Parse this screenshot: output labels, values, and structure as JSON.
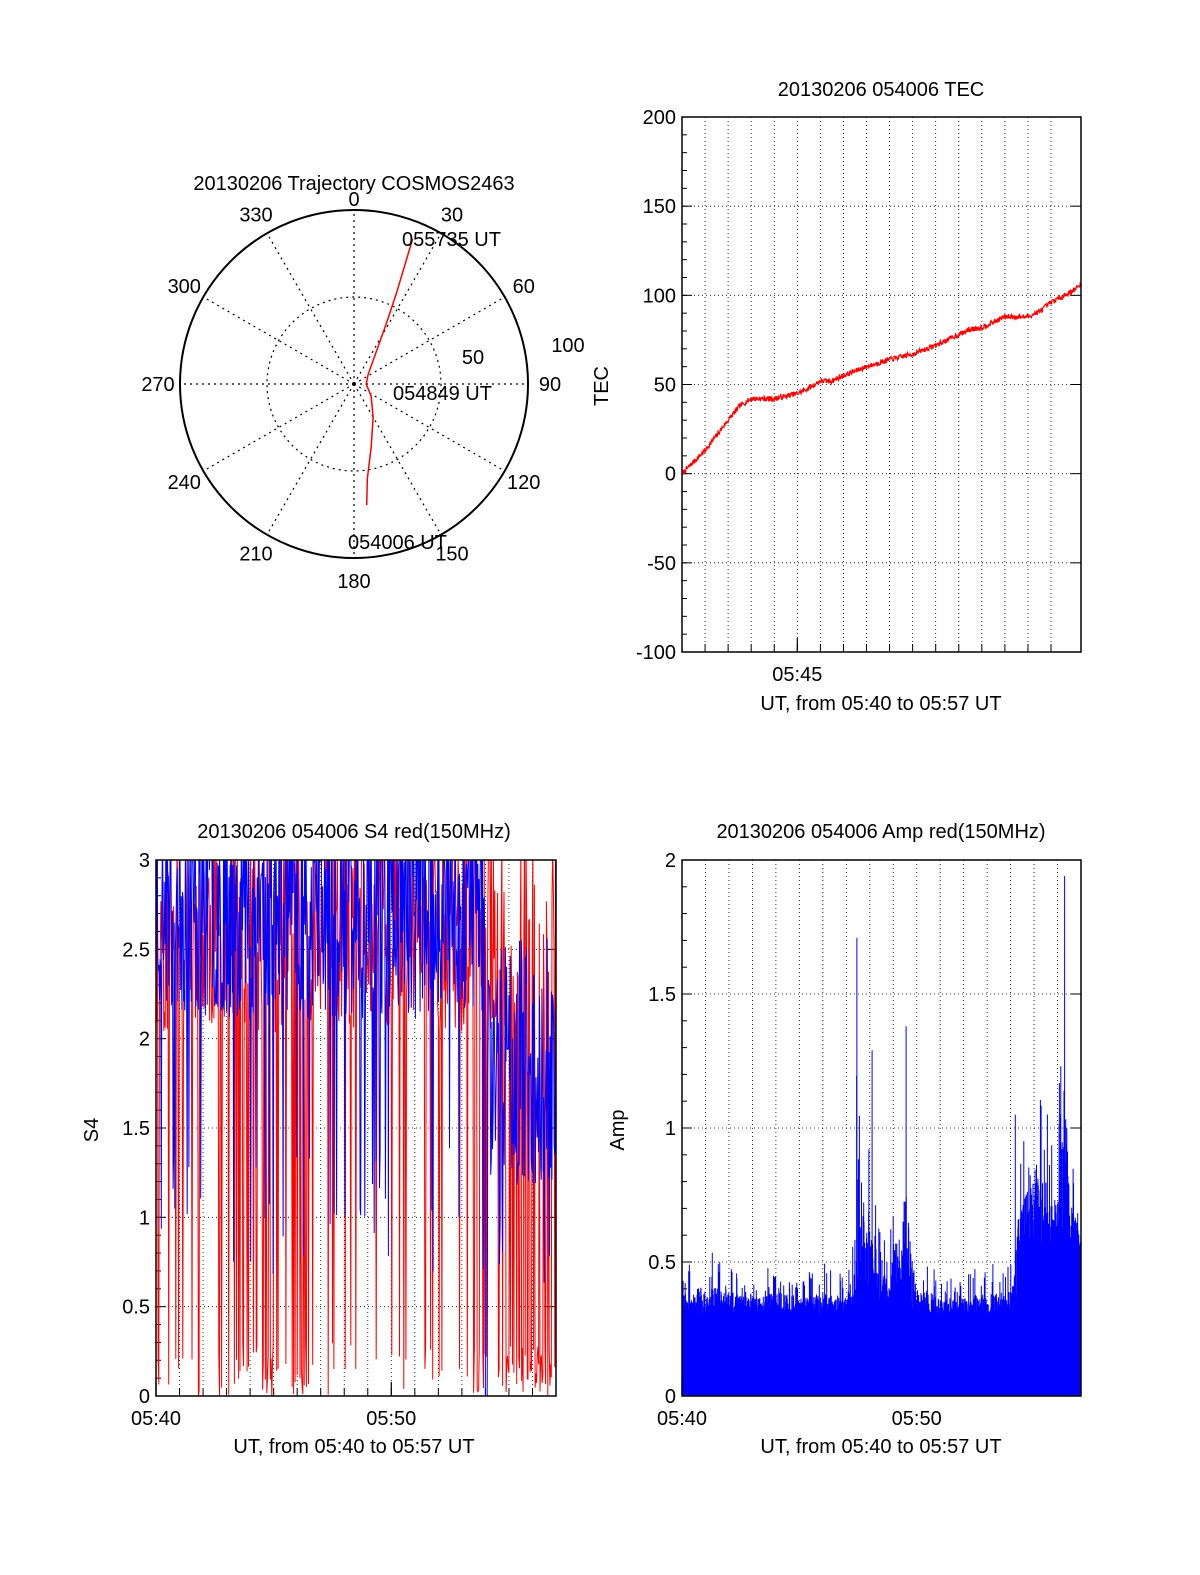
{
  "chart_data": [
    {
      "type": "polar",
      "title": "20130206 Trajectory COSMOS2463",
      "azimuth_labels": [
        "0",
        "30",
        "60",
        "90",
        "120",
        "150",
        "180",
        "210",
        "240",
        "270",
        "300",
        "330"
      ],
      "radial_labels": [
        "50",
        "100"
      ],
      "rlim": [
        0,
        100
      ],
      "grid": true,
      "annotations": [
        "055735 UT",
        "054849 UT",
        "054006 UT"
      ],
      "series": [
        {
          "color": "#ff0000",
          "points_az_r": [
            [
              174,
              70
            ],
            [
              172,
              55
            ],
            [
              165,
              38
            ],
            [
              150,
              22
            ],
            [
              125,
              12
            ],
            [
              90,
              7
            ],
            [
              55,
              10
            ],
            [
              35,
              22
            ],
            [
              28,
              40
            ],
            [
              25,
              58
            ],
            [
              23,
              76
            ],
            [
              22,
              90
            ]
          ]
        }
      ]
    },
    {
      "type": "line",
      "title": "20130206 054006 TEC",
      "xlabel": "UT, from 05:40 to 05:57 UT",
      "ylabel": "TEC",
      "xlim": [
        0,
        17.3
      ],
      "ylim": [
        -100,
        200
      ],
      "yticks": [
        "200",
        "150",
        "100",
        "50",
        "0",
        "-50",
        "-100"
      ],
      "xticks": [
        {
          "x": 5,
          "label": "05:45"
        }
      ],
      "grid": true,
      "series": [
        {
          "color": "#ff0000",
          "x": [
            0,
            1,
            2,
            2.5,
            3,
            4,
            5,
            5.5,
            6,
            6.5,
            7,
            8,
            9,
            10,
            11,
            12,
            12.5,
            13,
            13.5,
            14,
            15,
            15.5,
            16,
            17,
            17.3
          ],
          "y": [
            0,
            13,
            30,
            38,
            42,
            42,
            45,
            48,
            52,
            52,
            55,
            60,
            64,
            67,
            72,
            78,
            81,
            82,
            85,
            88,
            88,
            91,
            96,
            103,
            106
          ]
        }
      ]
    },
    {
      "type": "line",
      "title": "20130206 054006 S4 red(150MHz)",
      "xlabel": "UT, from 05:40 to 05:57 UT",
      "ylabel": "S4",
      "xlim": [
        0,
        17
      ],
      "ylim": [
        0,
        3
      ],
      "yticks": [
        "3",
        "2.5",
        "2",
        "1.5",
        "1",
        "0.5",
        "0"
      ],
      "xticks": [
        {
          "x": 0,
          "label": "05:40"
        },
        {
          "x": 10,
          "label": "05:50"
        }
      ],
      "grid": true,
      "series": [
        {
          "color": "#ff0000",
          "envelope": "dense-spikes",
          "range": [
            0,
            3
          ]
        },
        {
          "color": "#0000ff",
          "envelope": "dense-spikes",
          "range": [
            0.8,
            3
          ]
        }
      ]
    },
    {
      "type": "bar",
      "title": "20130206 054006 Amp red(150MHz)",
      "xlabel": "UT, from 05:40 to 05:57 UT",
      "ylabel": "Amp",
      "xlim": [
        0,
        17
      ],
      "ylim": [
        0,
        2
      ],
      "yticks": [
        "2",
        "1.5",
        "1",
        "0.5",
        "0"
      ],
      "xticks": [
        {
          "x": 0,
          "label": "05:40"
        },
        {
          "x": 10,
          "label": "05:50"
        }
      ],
      "grid": true,
      "series": [
        {
          "color": "#0000ff",
          "envelope_x": [
            0,
            1,
            2,
            3,
            4,
            5,
            6,
            7,
            7.3,
            7.5,
            8,
            8.5,
            9,
            9.5,
            10,
            11,
            12,
            13,
            14,
            14.5,
            15,
            16,
            16.3,
            16.6,
            17
          ],
          "envelope_y": [
            0.48,
            0.55,
            0.5,
            0.45,
            0.5,
            0.45,
            0.5,
            0.45,
            0.65,
            1.7,
            1.25,
            0.6,
            0.8,
            1.35,
            0.55,
            0.45,
            0.45,
            0.5,
            0.5,
            0.95,
            1.15,
            1.05,
            1.94,
            0.9,
            0.7
          ]
        }
      ]
    }
  ]
}
